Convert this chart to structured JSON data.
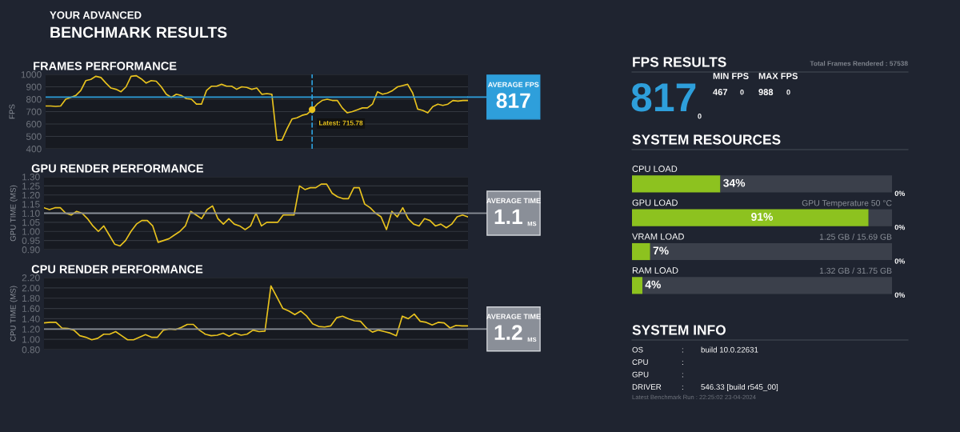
{
  "chart_data": [
    {
      "type": "other",
      "title": "BENCHMARK RESULTS",
      "subtitle": "YOUR ADVANCED"
    },
    {
      "type": "line",
      "title": "FRAMES PERFORMANCE",
      "ylabel": "FPS",
      "color": "#e8c21e",
      "grid": "y",
      "tick_labels": "y",
      "ylim": [
        400,
        1000
      ],
      "yticks": [
        400,
        500,
        600,
        700,
        800,
        900,
        1000
      ],
      "categories": [
        null,
        null,
        null,
        null,
        null,
        null,
        null,
        null,
        null,
        null,
        null,
        null,
        null,
        null,
        null,
        null,
        null,
        null,
        null,
        null,
        null,
        null,
        null,
        null,
        null,
        null,
        null,
        null,
        null,
        null,
        null,
        null,
        null,
        null,
        null,
        null,
        null,
        null,
        null,
        null,
        null,
        null,
        null,
        null,
        null,
        null,
        null,
        null,
        null,
        null,
        null,
        null,
        null,
        null,
        null,
        null,
        null,
        null,
        null,
        null,
        null,
        null,
        null,
        null,
        null,
        null,
        null,
        null,
        null,
        null,
        null,
        null,
        null,
        null,
        null,
        null,
        null,
        null,
        null,
        null,
        null,
        null,
        null,
        null,
        null
      ],
      "values": [
        745,
        745,
        742,
        745,
        800,
        815,
        830,
        870,
        950,
        960,
        985,
        975,
        930,
        890,
        880,
        860,
        900,
        985,
        990,
        965,
        930,
        950,
        945,
        900,
        840,
        815,
        840,
        830,
        805,
        800,
        760,
        760,
        870,
        905,
        905,
        920,
        905,
        905,
        880,
        900,
        895,
        880,
        890,
        840,
        845,
        840,
        470,
        470,
        560,
        640,
        650,
        670,
        680,
        715.78,
        760,
        790,
        800,
        790,
        790,
        730,
        690,
        700,
        715,
        730,
        730,
        760,
        860,
        840,
        850,
        870,
        900,
        910,
        920,
        850,
        720,
        710,
        690,
        740,
        760,
        750,
        760,
        790,
        785,
        790,
        790
      ],
      "ref_lines": [
        {
          "axis": "y",
          "value": 817,
          "label": "817",
          "color": "#2e9fdb"
        }
      ],
      "annotations": [
        "AVERAGE FPS",
        {
          "text": "Latest: 715.78",
          "y": 715.78
        }
      ]
    },
    {
      "type": "line",
      "title": "GPU RENDER PERFORMANCE",
      "ylabel": "GPU TIME (MS)",
      "color": "#e8c21e",
      "grid": "y",
      "tick_labels": "y",
      "ylim": [
        0.9,
        1.3
      ],
      "yticks": [
        {
          "value": 0.9,
          "label": "0.90"
        },
        {
          "value": 0.95,
          "label": "0.95"
        },
        {
          "value": 1.0,
          "label": "1.00"
        },
        {
          "value": 1.05,
          "label": "1.05"
        },
        {
          "value": 1.1,
          "label": "1.10"
        },
        {
          "value": 1.15,
          "label": "1.15"
        },
        {
          "value": 1.2,
          "label": "1.20"
        },
        {
          "value": 1.25,
          "label": "1.25"
        },
        {
          "value": 1.3,
          "label": "1.30"
        }
      ],
      "categories": [
        null,
        null,
        null,
        null,
        null,
        null,
        null,
        null,
        null,
        null,
        null,
        null,
        null,
        null,
        null,
        null,
        null,
        null,
        null,
        null,
        null,
        null,
        null,
        null,
        null,
        null,
        null,
        null,
        null,
        null,
        null,
        null,
        null,
        null,
        null,
        null,
        null,
        null,
        null,
        null,
        null,
        null,
        null,
        null,
        null,
        null,
        null,
        null,
        null,
        null,
        null,
        null,
        null,
        null,
        null,
        null,
        null,
        null,
        null,
        null,
        null,
        null,
        null,
        null,
        null,
        null,
        null,
        null,
        null,
        null,
        null,
        null,
        null,
        null,
        null,
        null,
        null,
        null,
        null
      ],
      "values": [
        1.13,
        1.12,
        1.13,
        1.13,
        1.1,
        1.09,
        1.11,
        1.1,
        1.07,
        1.03,
        1.0,
        1.03,
        0.98,
        0.93,
        0.92,
        0.95,
        1.0,
        1.04,
        1.06,
        1.06,
        1.03,
        0.94,
        0.95,
        0.96,
        0.98,
        1.0,
        1.03,
        1.11,
        1.09,
        1.07,
        1.12,
        1.14,
        1.07,
        1.04,
        1.07,
        1.04,
        1.03,
        1.01,
        1.03,
        1.1,
        1.03,
        1.05,
        1.05,
        1.05,
        1.09,
        1.09,
        1.09,
        1.25,
        1.23,
        1.24,
        1.24,
        1.26,
        1.26,
        1.21,
        1.19,
        1.18,
        1.18,
        1.24,
        1.24,
        1.15,
        1.13,
        1.1,
        1.08,
        1.01,
        1.11,
        1.08,
        1.13,
        1.07,
        1.04,
        1.03,
        1.07,
        1.06,
        1.03,
        1.04,
        1.02,
        1.04,
        1.08,
        1.09,
        1.08
      ],
      "ref_lines": [
        {
          "axis": "y",
          "value": 1.1,
          "label": "1.1",
          "color": "#8a8f98"
        }
      ],
      "annotations": [
        "AVERAGE TIME",
        "MS"
      ]
    },
    {
      "type": "line",
      "title": "CPU RENDER PERFORMANCE",
      "ylabel": "CPU TIME (MS)",
      "color": "#e8c21e",
      "grid": "y",
      "tick_labels": "y",
      "ylim": [
        0.8,
        2.2
      ],
      "yticks": [
        {
          "value": 0.8,
          "label": "0.80"
        },
        {
          "value": 1.0,
          "label": "1.00"
        },
        {
          "value": 1.2,
          "label": "1.20"
        },
        {
          "value": 1.4,
          "label": "1.40"
        },
        {
          "value": 1.6,
          "label": "1.60"
        },
        {
          "value": 1.8,
          "label": "1.80"
        },
        {
          "value": 2.0,
          "label": "2.00"
        },
        {
          "value": 2.2,
          "label": "2.20"
        }
      ],
      "categories": [
        null,
        null,
        null,
        null,
        null,
        null,
        null,
        null,
        null,
        null,
        null,
        null,
        null,
        null,
        null,
        null,
        null,
        null,
        null,
        null,
        null,
        null,
        null,
        null,
        null,
        null,
        null,
        null,
        null,
        null,
        null,
        null,
        null,
        null,
        null,
        null,
        null,
        null,
        null,
        null,
        null,
        null,
        null,
        null,
        null,
        null,
        null,
        null,
        null,
        null,
        null,
        null,
        null,
        null,
        null,
        null,
        null,
        null,
        null,
        null,
        null,
        null,
        null,
        null,
        null,
        null,
        null,
        null,
        null,
        null,
        null,
        null
      ],
      "values": [
        1.32,
        1.33,
        1.33,
        1.22,
        1.21,
        1.18,
        1.07,
        1.04,
        0.99,
        1.02,
        1.1,
        1.1,
        1.15,
        1.07,
        0.99,
        0.99,
        1.04,
        1.09,
        1.04,
        1.04,
        1.18,
        1.2,
        1.19,
        1.23,
        1.29,
        1.29,
        1.18,
        1.1,
        1.07,
        1.08,
        1.12,
        1.06,
        1.12,
        1.08,
        1.1,
        1.18,
        1.15,
        1.16,
        2.04,
        1.82,
        1.6,
        1.55,
        1.48,
        1.55,
        1.45,
        1.3,
        1.25,
        1.24,
        1.26,
        1.42,
        1.45,
        1.4,
        1.36,
        1.35,
        1.22,
        1.14,
        1.18,
        1.15,
        1.12,
        1.07,
        1.45,
        1.4,
        1.49,
        1.35,
        1.33,
        1.28,
        1.33,
        1.32,
        1.22,
        1.27,
        1.26,
        1.26
      ],
      "ref_lines": [
        {
          "axis": "y",
          "value": 1.2,
          "label": "1.2",
          "color": "#8a8f98"
        }
      ],
      "annotations": [
        "AVERAGE TIME",
        "MS"
      ]
    },
    {
      "type": "other",
      "title": "FPS RESULTS",
      "annotations": [
        "Total Frames Rendered : 57538",
        "817",
        "0",
        "MIN FPS",
        "467",
        "0",
        "MAX FPS",
        "988",
        "0"
      ]
    },
    {
      "type": "bar",
      "title": "SYSTEM RESOURCES",
      "orientation": "horizontal",
      "stacked": true,
      "tick_labels": false,
      "xlim": [
        0,
        100
      ],
      "categories": [
        "CPU LOAD",
        "GPU LOAD",
        "VRAM LOAD",
        "RAM LOAD"
      ],
      "series": [
        {
          "color": "#8dc21f",
          "values": [
            34,
            91,
            7,
            4
          ],
          "value_labels": [
            "34%",
            "91%",
            "7%",
            "4%"
          ]
        },
        {
          "color": "#3b404b",
          "values": [
            66,
            9,
            93,
            96
          ]
        }
      ],
      "annotations": [
        "0%",
        "GPU Temperature 50 °C",
        "0%",
        "1.25 GB / 15.69 GB",
        "0%",
        "1.32 GB / 31.75 GB",
        "0%"
      ]
    },
    {
      "type": "other",
      "title": "SYSTEM INFO",
      "categories": [
        "OS",
        "CPU",
        "GPU",
        "DRIVER"
      ],
      "annotations": [
        {
          "text": ":",
          "y": "OS"
        },
        {
          "text": "build 10.0.22631",
          "y": "OS"
        },
        {
          "text": ":",
          "y": "CPU"
        },
        {
          "text": ":",
          "y": "GPU"
        },
        {
          "text": ":",
          "y": "DRIVER"
        },
        {
          "text": "546.33 [build r545_00]",
          "y": "DRIVER"
        },
        "Latest Benchmark Run : 22:25:02 23-04-2024"
      ]
    }
  ]
}
